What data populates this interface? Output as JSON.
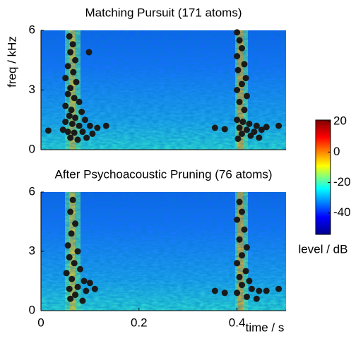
{
  "chart_data": [
    {
      "type": "scatter",
      "title": "Matching Pursuit (171 atoms)",
      "ylabel": "freq / kHz",
      "xlim": [
        0,
        0.5
      ],
      "ylim": [
        0,
        6
      ],
      "yticks": [
        0,
        3,
        6
      ],
      "color": "#1a1a1a",
      "x": [
        0.058,
        0.065,
        0.06,
        0.07,
        0.055,
        0.066,
        0.05,
        0.072,
        0.06,
        0.055,
        0.068,
        0.078,
        0.05,
        0.062,
        0.083,
        0.058,
        0.07,
        0.09,
        0.05,
        0.064,
        0.078,
        0.1,
        0.115,
        0.045,
        0.055,
        0.068,
        0.085,
        0.105,
        0.06,
        0.075,
        0.093,
        0.098,
        0.015,
        0.133,
        0.355,
        0.375,
        0.46,
        0.485,
        0.4,
        0.405,
        0.41,
        0.4,
        0.415,
        0.402,
        0.418,
        0.41,
        0.4,
        0.42,
        0.405,
        0.415,
        0.4,
        0.412,
        0.425,
        0.44,
        0.405,
        0.42,
        0.435,
        0.45,
        0.41,
        0.428,
        0.445,
        0.402
      ],
      "y": [
        5.7,
        5.3,
        4.9,
        4.5,
        4.2,
        3.9,
        3.6,
        3.4,
        3.1,
        2.8,
        2.6,
        2.4,
        2.2,
        2.0,
        1.9,
        1.7,
        1.6,
        1.5,
        1.4,
        1.3,
        1.2,
        1.2,
        1.1,
        1.0,
        0.9,
        0.85,
        0.9,
        0.8,
        0.6,
        0.5,
        0.6,
        4.9,
        0.96,
        1.2,
        1.1,
        1.03,
        1.14,
        1.2,
        5.9,
        5.5,
        5.1,
        4.7,
        4.3,
        4.0,
        3.6,
        3.3,
        3.0,
        2.7,
        2.4,
        2.0,
        1.5,
        1.4,
        1.3,
        1.2,
        1.1,
        1.0,
        0.9,
        1.0,
        0.8,
        0.7,
        0.6,
        0.55
      ]
    },
    {
      "type": "scatter",
      "title": "After Psychoacoustic Pruning (76 atoms)",
      "xlabel": "time / s",
      "xlim": [
        0,
        0.5
      ],
      "ylim": [
        0,
        6
      ],
      "xticks": [
        0,
        0.2,
        0.4
      ],
      "yticks": [
        0,
        3,
        6
      ],
      "color": "#1a1a1a",
      "x": [
        0.065,
        0.06,
        0.07,
        0.062,
        0.055,
        0.075,
        0.058,
        0.068,
        0.08,
        0.052,
        0.063,
        0.088,
        0.1,
        0.075,
        0.058,
        0.092,
        0.07,
        0.06,
        0.085,
        0.11,
        0.405,
        0.41,
        0.4,
        0.415,
        0.405,
        0.42,
        0.41,
        0.4,
        0.418,
        0.405,
        0.425,
        0.41,
        0.43,
        0.445,
        0.4,
        0.42,
        0.44,
        0.46,
        0.355,
        0.375,
        0.485
      ],
      "y": [
        5.6,
        5.0,
        4.4,
        3.9,
        3.3,
        3.0,
        2.7,
        2.4,
        2.1,
        1.9,
        1.6,
        1.5,
        1.4,
        1.2,
        1.1,
        1.0,
        0.8,
        0.6,
        0.5,
        1.1,
        5.5,
        5.0,
        4.6,
        4.1,
        3.6,
        3.2,
        2.8,
        2.4,
        2.0,
        1.7,
        1.5,
        1.3,
        1.1,
        1.0,
        0.9,
        0.7,
        0.6,
        1.0,
        1.0,
        0.9,
        1.1
      ]
    },
    {
      "type": "colorbar",
      "label": "level / dB",
      "ylim": [
        -54,
        21
      ],
      "yticks": [
        -40,
        -20,
        0,
        20
      ]
    }
  ]
}
